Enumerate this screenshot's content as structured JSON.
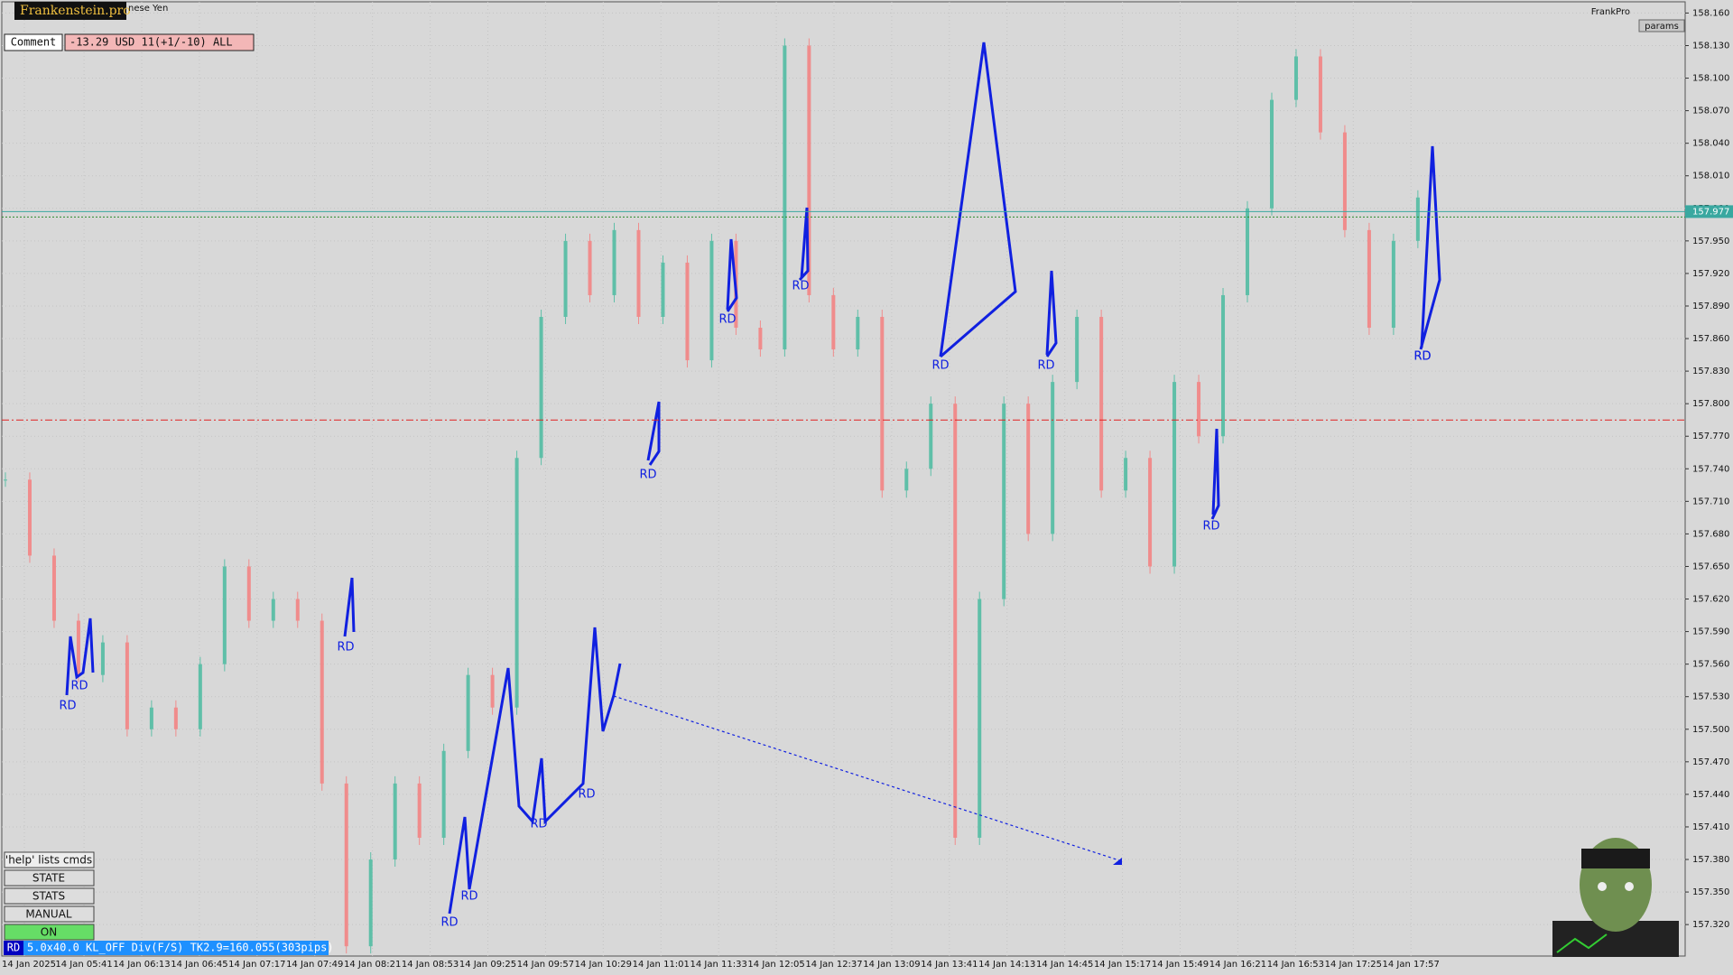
{
  "header": {
    "brand": "Frankenstein.pro",
    "symbol": "nese Yen",
    "owner": "FrankPro",
    "params": "params"
  },
  "comment": {
    "label": "Comment",
    "text": "-13.29 USD 11(+1/-10) ALL"
  },
  "buttons": {
    "help": "'help' lists cmds",
    "items": [
      "STATE",
      "STATS",
      "MANUAL",
      "ON"
    ]
  },
  "status": {
    "tag": "RD",
    "text": "5.0x40.0 KL_OFF Div(F/S) TK2.9=160.055(303pips)"
  },
  "annotations": [
    "RD",
    "RD",
    "RD",
    "RD",
    "RD",
    "RD",
    "RD",
    "RD",
    "RD",
    "RD",
    "RD",
    "RD",
    "RD",
    "RD",
    "RD"
  ],
  "chart": {
    "type": "candlestick",
    "ylim": [
      157.291,
      158.172
    ],
    "yticks": [
      {
        "value": 158.16,
        "label": "158.160"
      },
      {
        "value": 158.13,
        "label": "158.130"
      },
      {
        "value": 158.1,
        "label": "158.100"
      },
      {
        "value": 158.07,
        "label": "158.070"
      },
      {
        "value": 158.04,
        "label": "158.040"
      },
      {
        "value": 158.01,
        "label": "158.010"
      },
      {
        "value": 157.98,
        "label": "157.980"
      },
      {
        "value": 157.95,
        "label": "157.950"
      },
      {
        "value": 157.92,
        "label": "157.920"
      },
      {
        "value": 157.89,
        "label": "157.890"
      },
      {
        "value": 157.86,
        "label": "157.860"
      },
      {
        "value": 157.83,
        "label": "157.830"
      },
      {
        "value": 157.8,
        "label": "157.800"
      },
      {
        "value": 157.77,
        "label": "157.770"
      },
      {
        "value": 157.74,
        "label": "157.740"
      },
      {
        "value": 157.71,
        "label": "157.710"
      },
      {
        "value": 157.68,
        "label": "157.680"
      },
      {
        "value": 157.65,
        "label": "157.650"
      },
      {
        "value": 157.62,
        "label": "157.620"
      },
      {
        "value": 157.59,
        "label": "157.590"
      },
      {
        "value": 157.56,
        "label": "157.560"
      },
      {
        "value": 157.53,
        "label": "157.530"
      },
      {
        "value": 157.5,
        "label": "157.500"
      },
      {
        "value": 157.47,
        "label": "157.470"
      },
      {
        "value": 157.44,
        "label": "157.440"
      },
      {
        "value": 157.41,
        "label": "157.410"
      },
      {
        "value": 157.38,
        "label": "157.380"
      },
      {
        "value": 157.35,
        "label": "157.350"
      },
      {
        "value": 157.32,
        "label": "157.320"
      }
    ],
    "categories": [
      "14 Jan 2025",
      "14 Jan 05:41",
      "14 Jan 06:13",
      "14 Jan 06:45",
      "14 Jan 07:17",
      "14 Jan 07:49",
      "14 Jan 08:21",
      "14 Jan 08:53",
      "14 Jan 09:25",
      "14 Jan 09:57",
      "14 Jan 10:29",
      "14 Jan 11:01",
      "14 Jan 11:33",
      "14 Jan 12:05",
      "14 Jan 12:37",
      "14 Jan 13:09",
      "14 Jan 13:41",
      "14 Jan 14:13",
      "14 Jan 14:45",
      "14 Jan 15:17",
      "14 Jan 15:49",
      "14 Jan 16:21",
      "14 Jan 16:53",
      "14 Jan 17:25",
      "14 Jan 17:57"
    ],
    "values": [
      157.73,
      157.66,
      157.6,
      157.55,
      157.58,
      157.5,
      157.52,
      157.5,
      157.56,
      157.65,
      157.6,
      157.62,
      157.6,
      157.45,
      157.3,
      157.38,
      157.45,
      157.4,
      157.48,
      157.55,
      157.52,
      157.75,
      157.88,
      157.95,
      157.9,
      157.96,
      157.88,
      157.93,
      157.84,
      157.95,
      157.87,
      157.85,
      158.13,
      157.9,
      157.85,
      157.88,
      157.72,
      157.74,
      157.8,
      157.4,
      157.62,
      157.8,
      157.68,
      157.82,
      157.88,
      157.72,
      157.75,
      157.65,
      157.82,
      157.77,
      157.9,
      157.98,
      158.08,
      158.12,
      158.05,
      157.96,
      157.87,
      157.95,
      157.99
    ],
    "bid": {
      "value": 157.977,
      "label": "157.977"
    },
    "stop_level": 157.785
  }
}
